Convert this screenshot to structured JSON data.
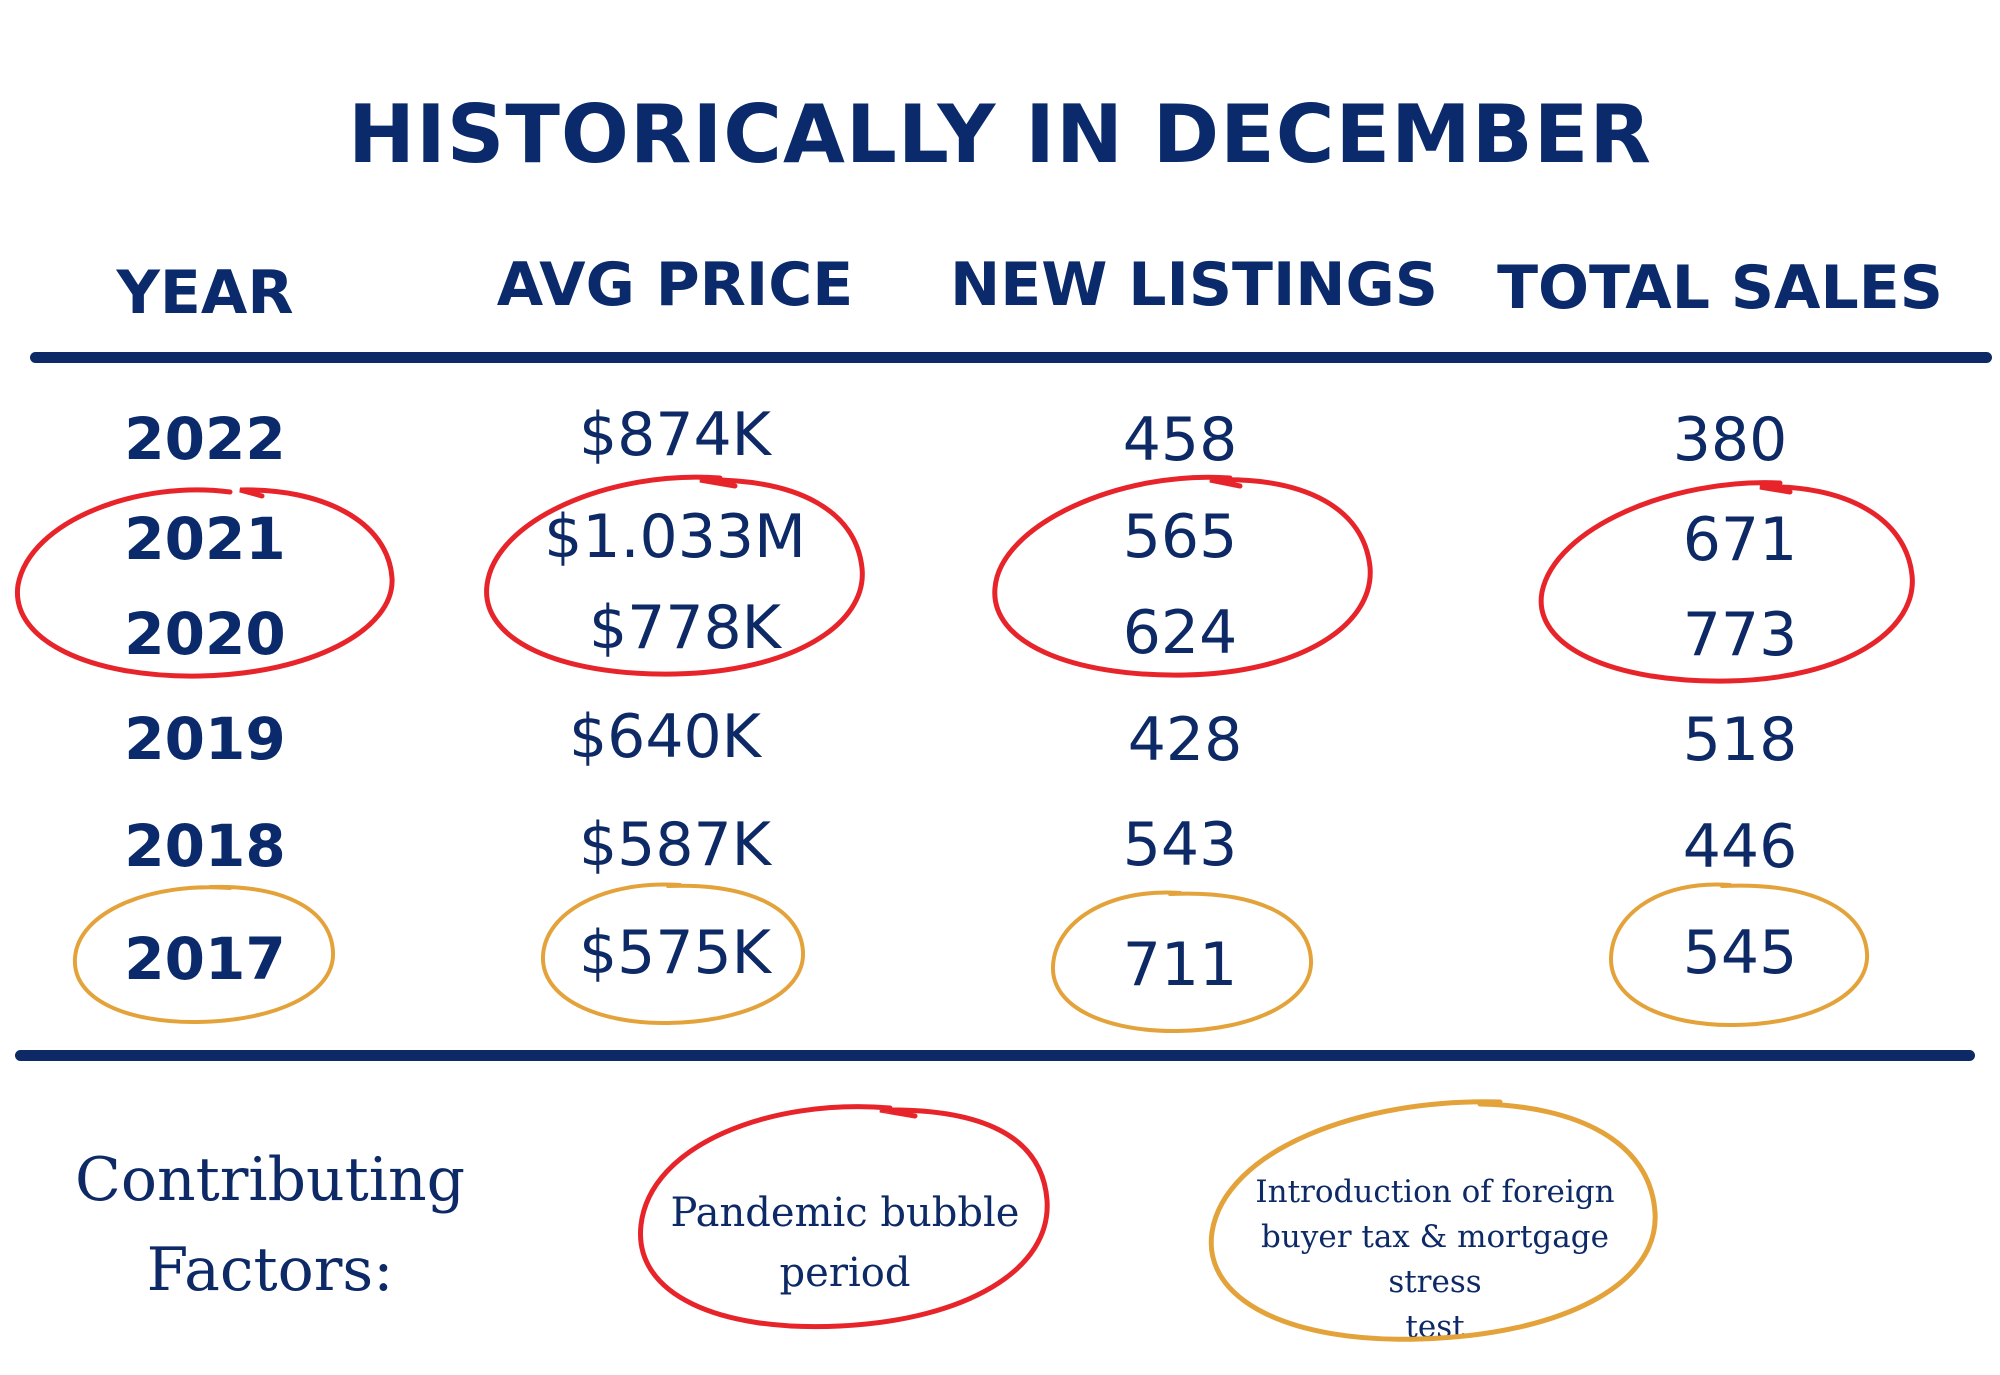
{
  "title": "HISTORICALLY IN DECEMBER",
  "columns": [
    "YEAR",
    "AVG PRICE",
    "NEW LISTINGS",
    "TOTAL SALES"
  ],
  "rows": [
    {
      "year": "2022",
      "avg_price": "$874K",
      "new_listings": "458",
      "total_sales": "380"
    },
    {
      "year": "2021",
      "avg_price": "$1.033M",
      "new_listings": "565",
      "total_sales": "671"
    },
    {
      "year": "2020",
      "avg_price": "$778K",
      "new_listings": "624",
      "total_sales": "773"
    },
    {
      "year": "2019",
      "avg_price": "$640K",
      "new_listings": "428",
      "total_sales": "518"
    },
    {
      "year": "2018",
      "avg_price": "$587K",
      "new_listings": "543",
      "total_sales": "446"
    },
    {
      "year": "2017",
      "avg_price": "$575K",
      "new_listings": "711",
      "total_sales": "545"
    }
  ],
  "factors": {
    "label_line1": "Contributing",
    "label_line2": "Factors:",
    "pandemic_line1": "Pandemic bubble",
    "pandemic_line2": "period",
    "foreign_line1": "Introduction of foreign",
    "foreign_line2": "buyer tax & mortgage stress",
    "foreign_line3": "test"
  },
  "colors": {
    "navy": "#0d2a66",
    "red_circle": "#e8242b",
    "gold_circle": "#e3a33a"
  }
}
